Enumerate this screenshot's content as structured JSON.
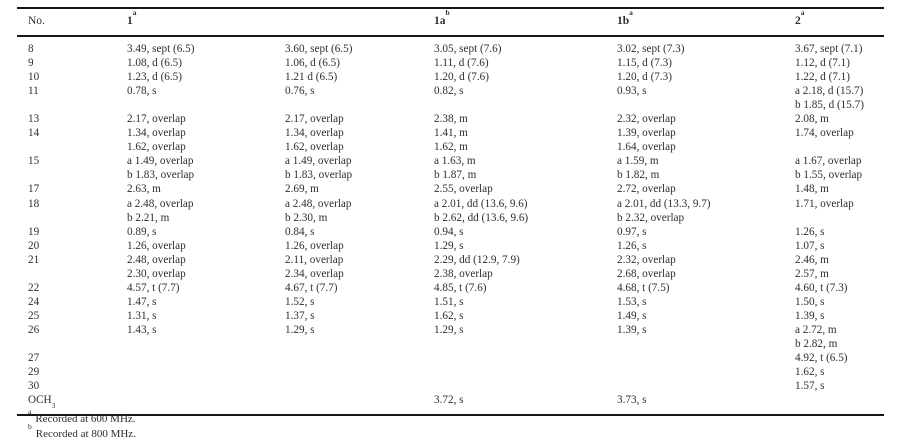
{
  "table": {
    "columns": [
      {
        "label": "No.",
        "sup": "",
        "bold": false
      },
      {
        "label": "1",
        "sup": "a",
        "bold": true
      },
      {
        "label": "",
        "sup": "",
        "bold": true
      },
      {
        "label": "1a",
        "sup": "b",
        "bold": true
      },
      {
        "label": "1b",
        "sup": "a",
        "bold": true
      },
      {
        "label": "2",
        "sup": "a",
        "bold": true
      }
    ],
    "rows": [
      {
        "no": "8",
        "no_sub": "",
        "cells": [
          [
            "3.49, sept (6.5)"
          ],
          [
            "3.60, sept (6.5)"
          ],
          [
            "3.05, sept (7.6)"
          ],
          [
            "3.02, sept (7.3)"
          ],
          [
            "3.67, sept (7.1)"
          ]
        ]
      },
      {
        "no": "9",
        "no_sub": "",
        "cells": [
          [
            "1.08, d (6.5)"
          ],
          [
            "1.06, d (6.5)"
          ],
          [
            "1.11, d (7.6)"
          ],
          [
            "1.15, d (7.3)"
          ],
          [
            "1.12, d (7.1)"
          ]
        ]
      },
      {
        "no": "10",
        "no_sub": "",
        "cells": [
          [
            "1.23, d (6.5)"
          ],
          [
            "1.21 d (6.5)"
          ],
          [
            "1.20, d (7.6)"
          ],
          [
            "1.20, d (7.3)"
          ],
          [
            "1.22, d (7.1)"
          ]
        ]
      },
      {
        "no": "11",
        "no_sub": "",
        "cells": [
          [
            "0.78, s"
          ],
          [
            "0.76, s"
          ],
          [
            "0.82, s"
          ],
          [
            "0.93, s"
          ],
          [
            "a 2.18, d (15.7)",
            "b 1.85, d (15.7)"
          ]
        ]
      },
      {
        "no": "13",
        "no_sub": "",
        "cells": [
          [
            "2.17, overlap"
          ],
          [
            "2.17, overlap"
          ],
          [
            "2.38, m"
          ],
          [
            "2.32, overlap"
          ],
          [
            "2.08, m"
          ]
        ]
      },
      {
        "no": "14",
        "no_sub": "",
        "cells": [
          [
            "1.34, overlap",
            "1.62, overlap"
          ],
          [
            "1.34, overlap",
            "1.62, overlap"
          ],
          [
            "1.41, m",
            "1.62, m"
          ],
          [
            "1.39, overlap",
            "1.64, overlap"
          ],
          [
            "1.74, overlap"
          ]
        ]
      },
      {
        "no": "15",
        "no_sub": "",
        "cells": [
          [
            "a 1.49, overlap",
            "b 1.83, overlap"
          ],
          [
            "a 1.49, overlap",
            "b 1.83, overlap"
          ],
          [
            "a 1.63, m",
            "b 1.87, m"
          ],
          [
            "a 1.59, m",
            "b 1.82, m"
          ],
          [
            "a 1.67, overlap",
            "b 1.55, overlap"
          ]
        ]
      },
      {
        "no": "17",
        "no_sub": "",
        "cells": [
          [
            "2.63, m"
          ],
          [
            "2.69, m"
          ],
          [
            "2.55, overlap"
          ],
          [
            "2.72, overlap"
          ],
          [
            "1.48, m"
          ]
        ]
      },
      {
        "no": "18",
        "no_sub": "",
        "cells": [
          [
            "a 2.48, overlap",
            "b 2.21, m"
          ],
          [
            "a 2.48, overlap",
            "b 2.30, m"
          ],
          [
            "a 2.01, dd (13.6, 9.6)",
            "b 2.62, dd (13.6, 9.6)"
          ],
          [
            "a 2.01, dd (13.3, 9.7)",
            "b 2.32, overlap"
          ],
          [
            "1.71, overlap"
          ]
        ]
      },
      {
        "no": "19",
        "no_sub": "",
        "cells": [
          [
            "0.89, s"
          ],
          [
            "0.84, s"
          ],
          [
            "0.94, s"
          ],
          [
            "0.97, s"
          ],
          [
            "1.26, s"
          ]
        ]
      },
      {
        "no": "20",
        "no_sub": "",
        "cells": [
          [
            "1.26, overlap"
          ],
          [
            "1.26, overlap"
          ],
          [
            "1.29, s"
          ],
          [
            "1.26, s"
          ],
          [
            "1.07, s"
          ]
        ]
      },
      {
        "no": "21",
        "no_sub": "",
        "cells": [
          [
            "2.48, overlap",
            "2.30, overlap"
          ],
          [
            "2.11, overlap",
            "2.34, overlap"
          ],
          [
            "2.29, dd (12.9, 7.9)",
            "2.38, overlap"
          ],
          [
            "2.32, overlap",
            "2.68, overlap"
          ],
          [
            "2.46, m",
            "2.57, m"
          ]
        ]
      },
      {
        "no": "22",
        "no_sub": "",
        "cells": [
          [
            "4.57, t (7.7)"
          ],
          [
            "4.67, t (7.7)"
          ],
          [
            "4.85, t (7.6)"
          ],
          [
            "4.68, t (7.5)"
          ],
          [
            "4.60, t (7.3)"
          ]
        ]
      },
      {
        "no": "24",
        "no_sub": "",
        "cells": [
          [
            "1.47, s"
          ],
          [
            "1.52, s"
          ],
          [
            "1.51, s"
          ],
          [
            "1.53, s"
          ],
          [
            "1.50, s"
          ]
        ]
      },
      {
        "no": "25",
        "no_sub": "",
        "cells": [
          [
            "1.31, s"
          ],
          [
            "1.37, s"
          ],
          [
            "1.62, s"
          ],
          [
            "1.49, s"
          ],
          [
            "1.39, s"
          ]
        ]
      },
      {
        "no": "26",
        "no_sub": "",
        "cells": [
          [
            "1.43, s"
          ],
          [
            "1.29, s"
          ],
          [
            "1.29, s"
          ],
          [
            "1.39, s"
          ],
          [
            "a 2.72, m",
            "b 2.82, m"
          ]
        ]
      },
      {
        "no": "27",
        "no_sub": "",
        "cells": [
          [],
          [],
          [],
          [],
          [
            "4.92, t (6.5)"
          ]
        ]
      },
      {
        "no": "29",
        "no_sub": "",
        "cells": [
          [],
          [],
          [],
          [],
          [
            "1.62, s"
          ]
        ]
      },
      {
        "no": "30",
        "no_sub": "",
        "cells": [
          [],
          [],
          [],
          [],
          [
            "1.57, s"
          ]
        ]
      },
      {
        "no": "OCH",
        "no_sub": "3",
        "cells": [
          [],
          [],
          [
            "3.72, s"
          ],
          [
            "3.73, s"
          ],
          []
        ]
      }
    ],
    "footnotes": [
      {
        "sup": "a",
        "text": "Recorded at 600 MHz."
      },
      {
        "sup": "b",
        "text": "Recorded at 800 MHz."
      }
    ]
  },
  "colors": {
    "background": "#ffffff",
    "text": "#2e2e2e",
    "rule": "#161616"
  }
}
